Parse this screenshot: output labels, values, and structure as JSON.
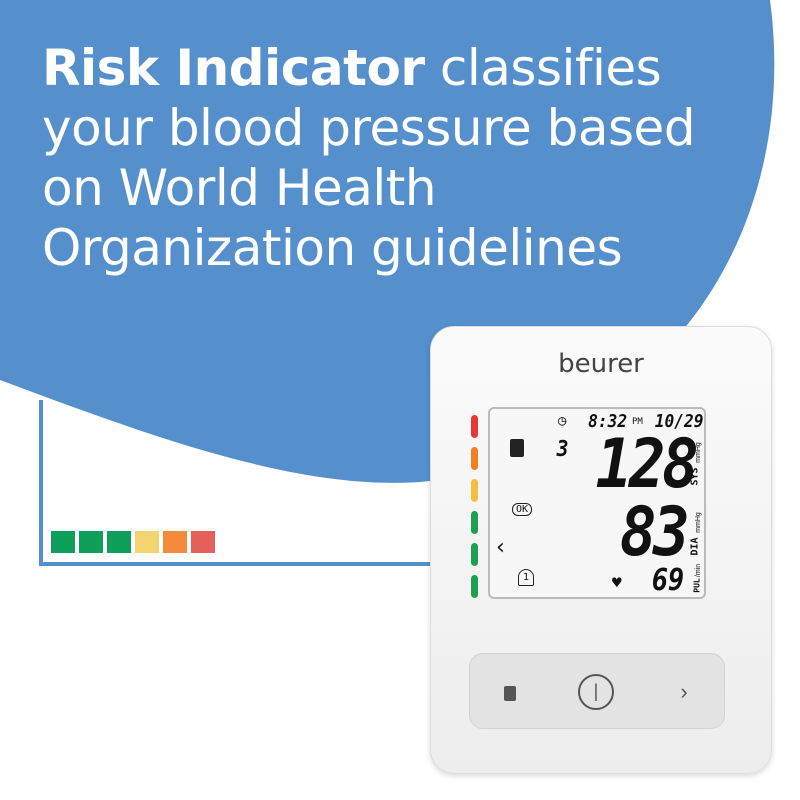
{
  "headline": {
    "bold": "Risk Indicator",
    "rest": " classifies your blood pressure based on World Health Organization guidelines"
  },
  "colors": {
    "blue": "#5590cc",
    "scale": [
      "#0ea05a",
      "#0ea05a",
      "#0ea05a",
      "#f2d470",
      "#f48b3a",
      "#e4605a"
    ],
    "risk": [
      "#e53935",
      "#f08020",
      "#f2c040",
      "#1ea050",
      "#1ea050",
      "#1ea050"
    ]
  },
  "device": {
    "brand": "beurer",
    "display": {
      "time": "8:32",
      "ampm": "PM",
      "date": "10/29",
      "memory": "3",
      "systolic": "128",
      "sys_label": "SYS",
      "sys_unit": "mmHg",
      "diastolic": "83",
      "dia_label": "DIA",
      "dia_unit": "mmHg",
      "pulse": "69",
      "pul_label": "PUL",
      "pul_unit": "/min",
      "cuff": "OK",
      "user": "1"
    },
    "icons": [
      "clock-icon",
      "memory-icon",
      "cuff-ok-icon",
      "arrow-left-icon",
      "user-icon",
      "heart-icon",
      "power-icon",
      "chevron-right-icon"
    ]
  }
}
